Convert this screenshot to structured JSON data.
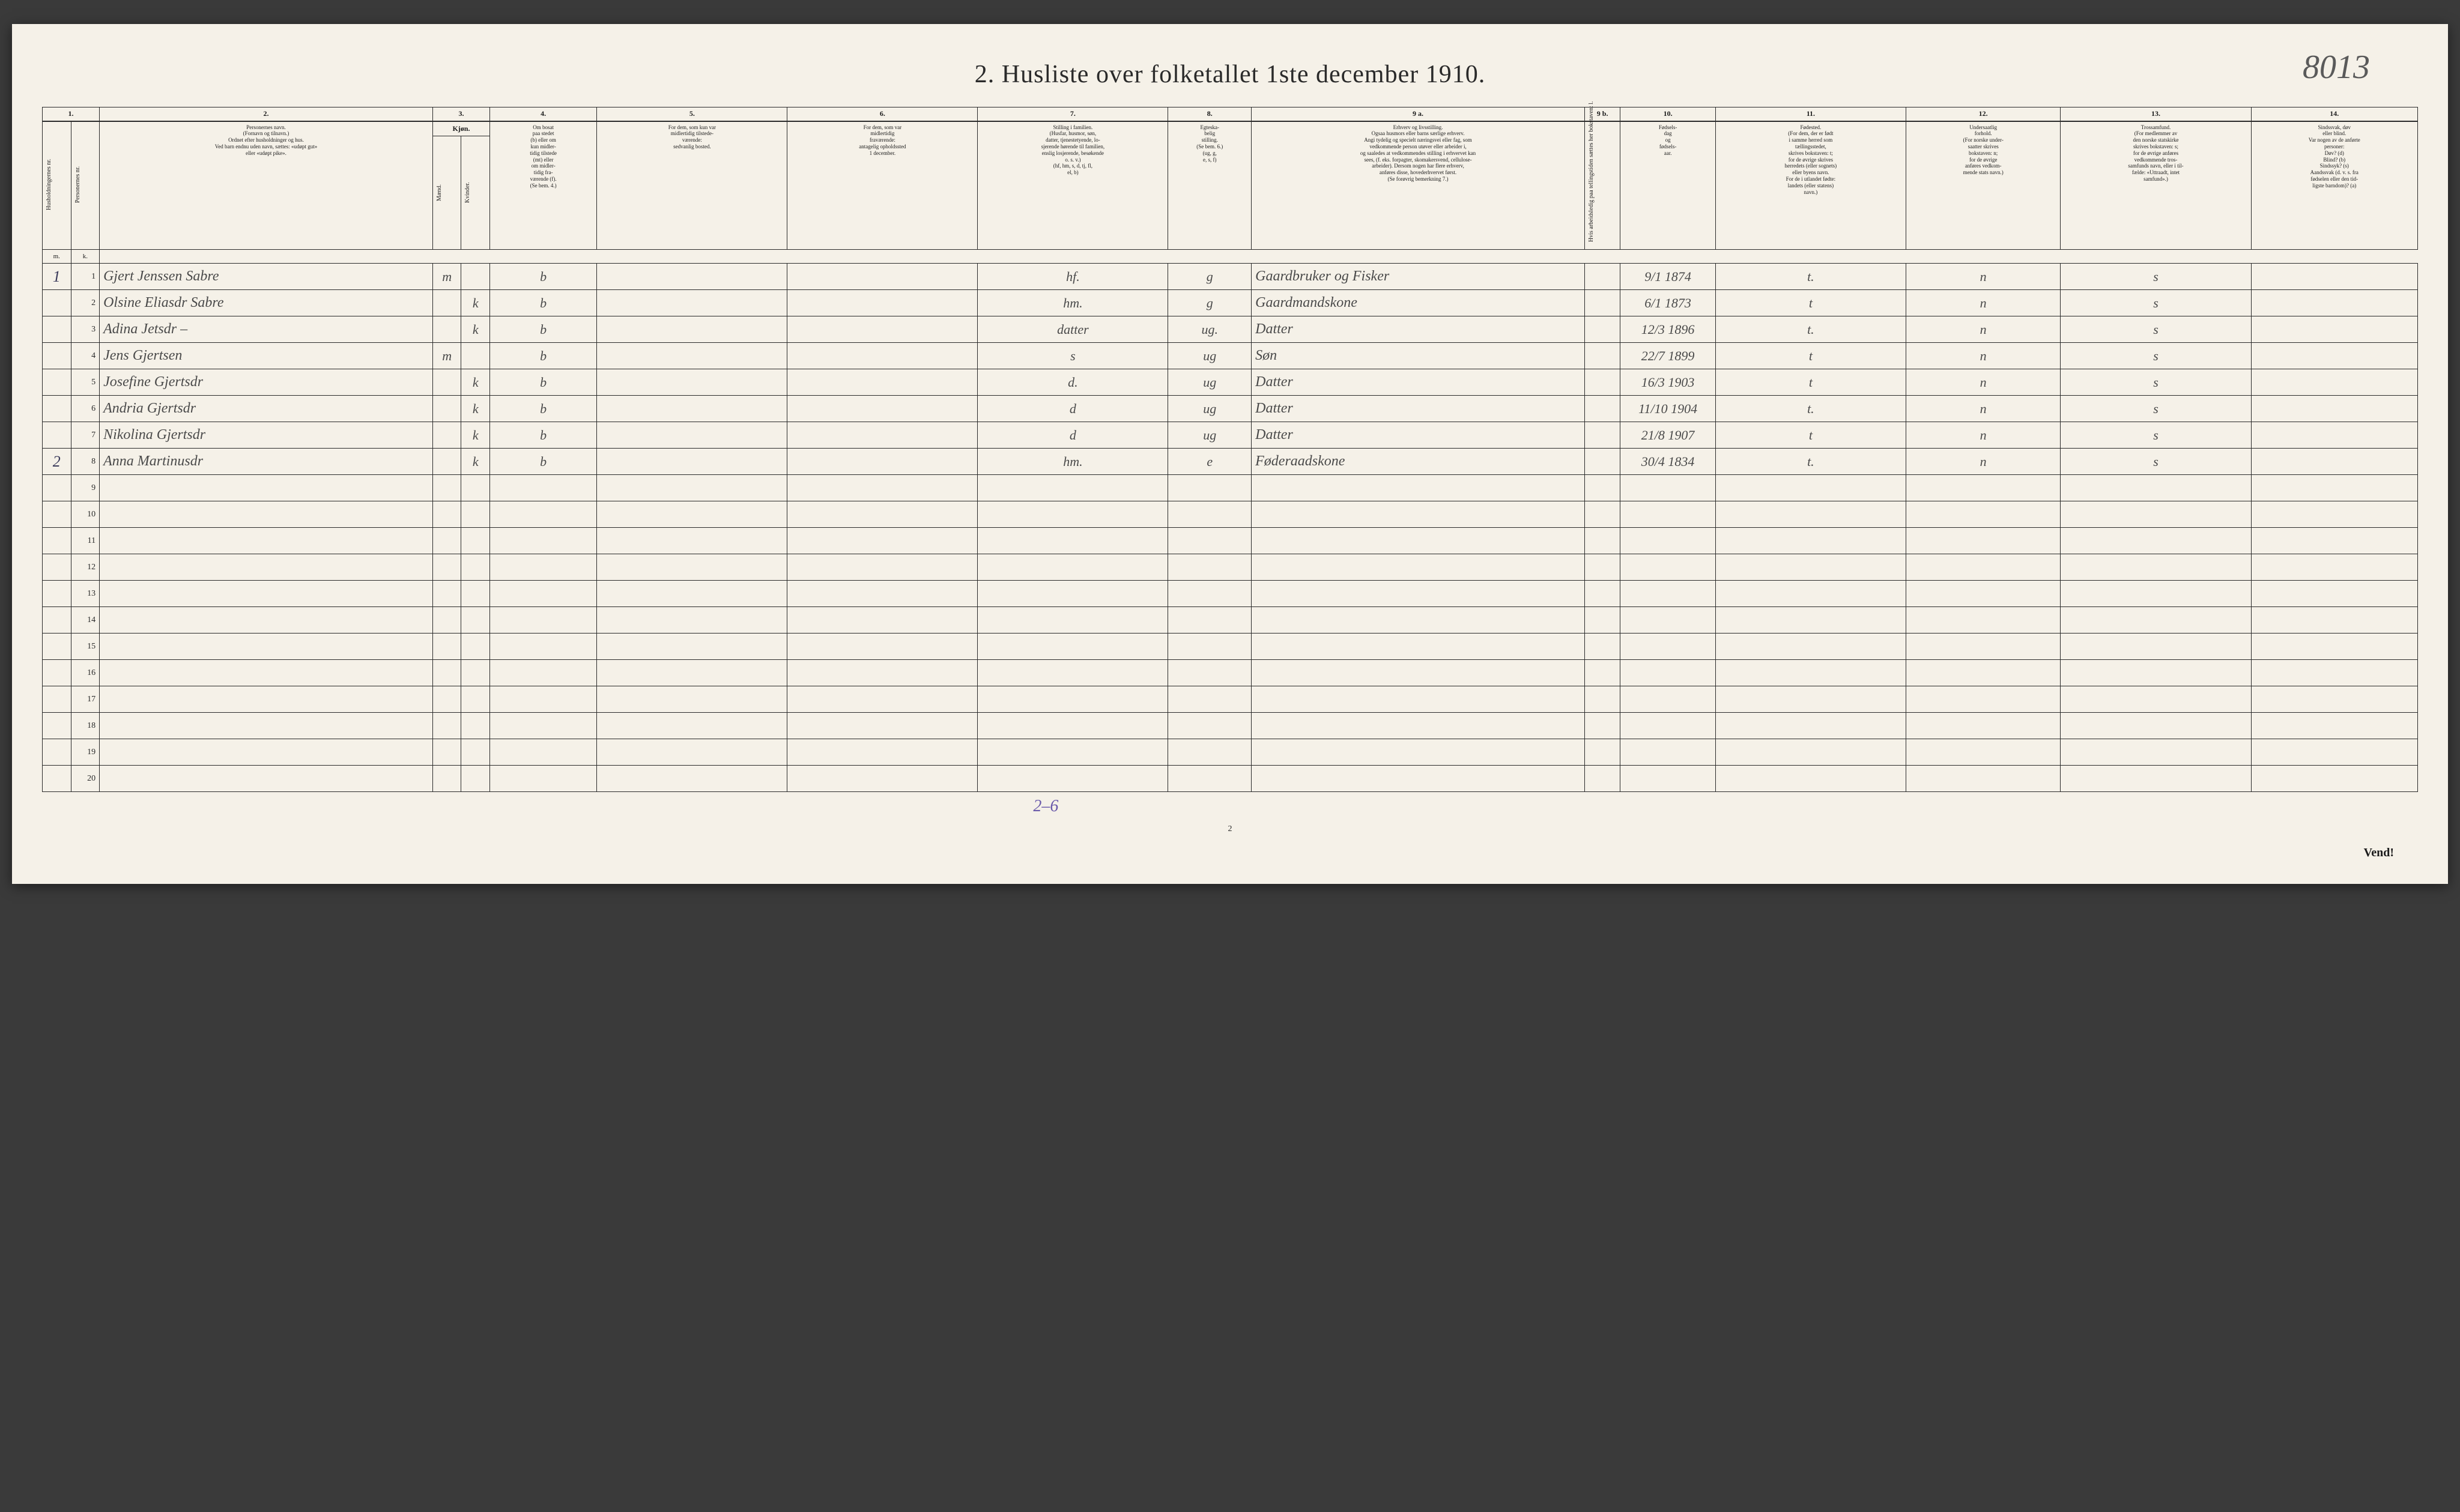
{
  "page": {
    "background": "#f5f1e8",
    "ink": "#2a2a2a",
    "handwriting_color": "#4a4a4a",
    "purple_ink": "#6a5aaa"
  },
  "annotation_topright": "8013",
  "title": "2.  Husliste over folketallet 1ste december 1910.",
  "column_numbers": [
    "1.",
    "2.",
    "3.",
    "4.",
    "5.",
    "6.",
    "7.",
    "8.",
    "9 a.",
    "9 b.",
    "10.",
    "11.",
    "12.",
    "13.",
    "14."
  ],
  "headers": {
    "col1a": "Husholdningernes nr.",
    "col1b": "Personernes nr.",
    "col2": "Personernes navn.\n(Fornavn og tilnavn.)\nOrdnet efter husholdninger og hus.\nVed barn endnu uden navn, sættes: «udøpt gut»\neller «udøpt pike».",
    "col3": "Kjøn.",
    "col3a": "Mænd.",
    "col3b": "Kvinder.",
    "col4": "Om bosat\npaa stedet\n(b) eller om\nkun midler-\ntidig tilstede\n(mt) eller\nom midler-\ntidig fra-\nværende (f).\n(Se bem. 4.)",
    "col5": "For dem, som kun var\nmidlertidig tilstede-\nværende:\nsedvanlig bosted.",
    "col6": "For dem, som var\nmidlertidig\nfraværende:\nantagelig opholdssted\n1 december.",
    "col7": "Stilling i familien.\n(Husfar, husmor, søn,\ndatter, tjenestetyende, lo-\nsjerende hørende til familien,\nenslig losjerende, besøkende\no. s. v.)\n(hf, hm, s, d, tj, fl,\nel, b)",
    "col8": "Egteska-\nbelig\nstilling.\n(Se bem. 6.)\n(ug, g,\ne, s, f)",
    "col9a": "Erhverv og livsstilling.\nOgsaa husmors eller barns særlige erhverv.\nAngi tydelig og specielt næringsvei eller fag, som\nvedkommende person utøver eller arbeider i,\nog saaledes at vedkommendes stilling i erhvervet kan\nsees, (f. eks. forpagter, skomakersvend, cellulose-\narbeider). Dersom nogen har flere erhverv,\nanføres disse, hovederhvervet først.\n(Se forøvrig bemerkning 7.)",
    "col9b": "Hvis arbeidsledig\npaa tellingstiden sættes\nher bokstaven: l.",
    "col10": "Fødsels-\ndag\nog\nfødsels-\naar.",
    "col11": "Fødested.\n(For dem, der er født\ni samme herred som\ntællingsstedet,\nskrives bokstaven: t;\nfor de øvrige skrives\nherredets (eller sognets)\neller byens navn.\nFor de i utlandet fødte:\nlandets (eller statens)\nnavn.)",
    "col12": "Undersaatlig\nforhold.\n(For norske under-\nsaatter skrives\nbokstaven: n;\nfor de øvrige\nanføres vedkom-\nmende stats navn.)",
    "col13": "Trossamfund.\n(For medlemmer av\nden norske statskirke\nskrives bokstaven: s;\nfor de øvrige anføres\nvedkommende tros-\nsamfunds navn, eller i til-\nfælde: «Uttraadt, intet\nsamfund».)",
    "col14": "Sindssvak, døv\neller blind.\nVar nogen av de anførte\npersoner:\nDøv?       (d)\nBlind?     (b)\nSindssyk?  (s)\nAandssvak (d. v. s. fra\nfødselen eller den tid-\nligste barndom)?  (a)"
  },
  "column_widths": {
    "hh": "1.2%",
    "pn": "1.2%",
    "name": "14%",
    "m": "1.2%",
    "k": "1.2%",
    "c4": "4.5%",
    "c5": "8%",
    "c6": "8%",
    "c7": "8%",
    "c8": "3.5%",
    "c9a": "14%",
    "c9b": "1.5%",
    "c10": "4%",
    "c11": "8%",
    "c12": "6.5%",
    "c13": "8%",
    "c14": "7%"
  },
  "rows": [
    {
      "hh": "1",
      "pn": "1",
      "name": "Gjert Jenssen Sabre",
      "m": "m",
      "k": "",
      "c4": "b",
      "c5": "",
      "c6": "",
      "c7": "hf.",
      "c8": "g",
      "c9a": "Gaardbruker og Fisker",
      "c9b": "",
      "c10": "9/1 1874",
      "c11": "t.",
      "c12": "n",
      "c13": "s",
      "c14": ""
    },
    {
      "hh": "",
      "pn": "2",
      "name": "Olsine Eliasdr Sabre",
      "m": "",
      "k": "k",
      "c4": "b",
      "c5": "",
      "c6": "",
      "c7": "hm.",
      "c8": "g",
      "c9a": "Gaardmandskone",
      "c9b": "",
      "c10": "6/1 1873",
      "c11": "t",
      "c12": "n",
      "c13": "s",
      "c14": ""
    },
    {
      "hh": "",
      "pn": "3",
      "name": "Adina Jetsdr   –",
      "m": "",
      "k": "k",
      "c4": "b",
      "c5": "",
      "c6": "",
      "c7": "datter",
      "c8": "ug.",
      "c9a": "Datter",
      "c9b": "",
      "c10": "12/3 1896",
      "c11": "t.",
      "c12": "n",
      "c13": "s",
      "c14": ""
    },
    {
      "hh": "",
      "pn": "4",
      "name": "Jens Gjertsen",
      "m": "m",
      "k": "",
      "c4": "b",
      "c5": "",
      "c6": "",
      "c7": "s",
      "c8": "ug",
      "c9a": "Søn",
      "c9b": "",
      "c10": "22/7 1899",
      "c11": "t",
      "c12": "n",
      "c13": "s",
      "c14": ""
    },
    {
      "hh": "",
      "pn": "5",
      "name": "Josefine Gjertsdr",
      "m": "",
      "k": "k",
      "c4": "b",
      "c5": "",
      "c6": "",
      "c7": "d.",
      "c8": "ug",
      "c9a": "Datter",
      "c9b": "",
      "c10": "16/3 1903",
      "c11": "t",
      "c12": "n",
      "c13": "s",
      "c14": ""
    },
    {
      "hh": "",
      "pn": "6",
      "name": "Andria Gjertsdr",
      "m": "",
      "k": "k",
      "c4": "b",
      "c5": "",
      "c6": "",
      "c7": "d",
      "c8": "ug",
      "c9a": "Datter",
      "c9b": "",
      "c10": "11/10 1904",
      "c11": "t.",
      "c12": "n",
      "c13": "s",
      "c14": ""
    },
    {
      "hh": "",
      "pn": "7",
      "name": "Nikolina Gjertsdr",
      "m": "",
      "k": "k",
      "c4": "b",
      "c5": "",
      "c6": "",
      "c7": "d",
      "c8": "ug",
      "c9a": "Datter",
      "c9b": "",
      "c10": "21/8 1907",
      "c11": "t",
      "c12": "n",
      "c13": "s",
      "c14": ""
    },
    {
      "hh": "2",
      "pn": "8",
      "name": "Anna Martinusdr",
      "m": "",
      "k": "k",
      "c4": "b",
      "c5": "",
      "c6": "",
      "c7": "hm.",
      "c8": "e",
      "c9a": "Føderaadskone",
      "c9b": "",
      "c10": "30/4 1834",
      "c11": "t.",
      "c12": "n",
      "c13": "s",
      "c14": ""
    },
    {
      "hh": "",
      "pn": "9",
      "name": "",
      "m": "",
      "k": "",
      "c4": "",
      "c5": "",
      "c6": "",
      "c7": "",
      "c8": "",
      "c9a": "",
      "c9b": "",
      "c10": "",
      "c11": "",
      "c12": "",
      "c13": "",
      "c14": ""
    },
    {
      "hh": "",
      "pn": "10",
      "name": "",
      "m": "",
      "k": "",
      "c4": "",
      "c5": "",
      "c6": "",
      "c7": "",
      "c8": "",
      "c9a": "",
      "c9b": "",
      "c10": "",
      "c11": "",
      "c12": "",
      "c13": "",
      "c14": ""
    },
    {
      "hh": "",
      "pn": "11",
      "name": "",
      "m": "",
      "k": "",
      "c4": "",
      "c5": "",
      "c6": "",
      "c7": "",
      "c8": "",
      "c9a": "",
      "c9b": "",
      "c10": "",
      "c11": "",
      "c12": "",
      "c13": "",
      "c14": ""
    },
    {
      "hh": "",
      "pn": "12",
      "name": "",
      "m": "",
      "k": "",
      "c4": "",
      "c5": "",
      "c6": "",
      "c7": "",
      "c8": "",
      "c9a": "",
      "c9b": "",
      "c10": "",
      "c11": "",
      "c12": "",
      "c13": "",
      "c14": ""
    },
    {
      "hh": "",
      "pn": "13",
      "name": "",
      "m": "",
      "k": "",
      "c4": "",
      "c5": "",
      "c6": "",
      "c7": "",
      "c8": "",
      "c9a": "",
      "c9b": "",
      "c10": "",
      "c11": "",
      "c12": "",
      "c13": "",
      "c14": ""
    },
    {
      "hh": "",
      "pn": "14",
      "name": "",
      "m": "",
      "k": "",
      "c4": "",
      "c5": "",
      "c6": "",
      "c7": "",
      "c8": "",
      "c9a": "",
      "c9b": "",
      "c10": "",
      "c11": "",
      "c12": "",
      "c13": "",
      "c14": ""
    },
    {
      "hh": "",
      "pn": "15",
      "name": "",
      "m": "",
      "k": "",
      "c4": "",
      "c5": "",
      "c6": "",
      "c7": "",
      "c8": "",
      "c9a": "",
      "c9b": "",
      "c10": "",
      "c11": "",
      "c12": "",
      "c13": "",
      "c14": ""
    },
    {
      "hh": "",
      "pn": "16",
      "name": "",
      "m": "",
      "k": "",
      "c4": "",
      "c5": "",
      "c6": "",
      "c7": "",
      "c8": "",
      "c9a": "",
      "c9b": "",
      "c10": "",
      "c11": "",
      "c12": "",
      "c13": "",
      "c14": ""
    },
    {
      "hh": "",
      "pn": "17",
      "name": "",
      "m": "",
      "k": "",
      "c4": "",
      "c5": "",
      "c6": "",
      "c7": "",
      "c8": "",
      "c9a": "",
      "c9b": "",
      "c10": "",
      "c11": "",
      "c12": "",
      "c13": "",
      "c14": ""
    },
    {
      "hh": "",
      "pn": "18",
      "name": "",
      "m": "",
      "k": "",
      "c4": "",
      "c5": "",
      "c6": "",
      "c7": "",
      "c8": "",
      "c9a": "",
      "c9b": "",
      "c10": "",
      "c11": "",
      "c12": "",
      "c13": "",
      "c14": ""
    },
    {
      "hh": "",
      "pn": "19",
      "name": "",
      "m": "",
      "k": "",
      "c4": "",
      "c5": "",
      "c6": "",
      "c7": "",
      "c8": "",
      "c9a": "",
      "c9b": "",
      "c10": "",
      "c11": "",
      "c12": "",
      "c13": "",
      "c14": ""
    },
    {
      "hh": "",
      "pn": "20",
      "name": "",
      "m": "",
      "k": "",
      "c4": "",
      "c5": "",
      "c6": "",
      "c7": "",
      "c8": "",
      "c9a": "",
      "c9b": "",
      "c10": "",
      "c11": "",
      "c12": "",
      "c13": "",
      "c14": ""
    }
  ],
  "bottom_note": "2–6",
  "footer_page": "2",
  "vend": "Vend!"
}
